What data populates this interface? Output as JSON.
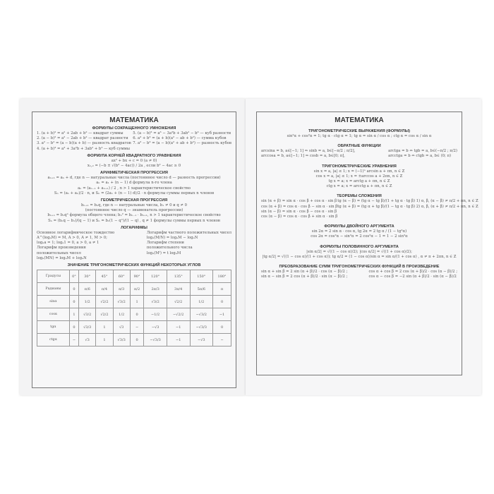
{
  "left": {
    "title": "МАТЕМАТИКА",
    "sections": [
      {
        "heading": "ФОРМУЛЫ СОКРАЩЕННОГО УМНОЖЕНИЯ",
        "col1": [
          "1. (a + b)² = a² + 2ab + b² — квадрат суммы",
          "2. (a − b)² = a² − 2ab + b² — квадрат разности",
          "3. a² − b² = (a − b)(a + b) — разность квадратов",
          "4. (a + b)³ = a³ + 3a²b + 3ab² + b³ — куб суммы"
        ],
        "col2": [
          "5. (a − b)³ = a³ − 3a²b + 3ab² − b³ — куб разности",
          "6. a³ + b³ = (a + b)(a² − ab + b²) — сумма кубов",
          "7. a³ − b³ = (a − b)(a² + ab + b²) — разность кубов"
        ]
      },
      {
        "heading": "ФОРМУЛА КОРНЕЙ КВАДРАТНОГО УРАВНЕНИЯ",
        "lines": [
          "ax² + bx + c = 0 (a ≠ 0)",
          "x₁,₂ = (−b ± √(b² − 4ac)) / 2a , если b² − 4ac ≥ 0"
        ]
      },
      {
        "heading": "АРИФМЕТИЧЕСКАЯ ПРОГРЕССИЯ",
        "lines": [
          "aₙ₊₁ = aₙ + d, где n — натуральные числа (постоянное число d — разность прогрессии)",
          "aₙ = a₁ + (n − 1) d        формула n-го члена",
          "aₙ = (aₙ₋₁ + aₙ₊₁) / 2 , n > 1  характеристическое свойство",
          "Sₙ = (a₁ + aₙ)/2 · n, и Sₙ = (2a₁ + (n − 1) d)/2 · n   формулы суммы первых n членов"
        ]
      },
      {
        "heading": "ГЕОМЕТРИЧЕСКАЯ ПРОГРЕССИЯ",
        "lines": [
          "bₙ₊₁ = bₙq, где n — натуральные числа, b₁ ≠ 0 и q ≠ 0",
          "(постоянное число q — знаменатель прогрессии)",
          "bₙ₊₁ = b₁qⁿ  формула общего члена; bₙ² = bₙ₋₁ · bₙ₊₁, n > 1  характеристическое свойство",
          "Sₙ = (bₙq − b₁)/(q − 1)  и  Sₙ = b₁(1 − qⁿ)/(1 − q) , q ≠ 1    формулы суммы первых n членов"
        ]
      },
      {
        "heading": "ЛОГАРИФМЫ",
        "col1": [
          "Основное логарифмическое тождество",
          "A^(logₐM) = M, A > 0, A ≠ 1, M > 0;",
          "logₐa = 1; logₐ1 = 0, a > 0, a ≠ 1",
          "",
          "Логарифм произведения",
          "положительных чисел",
          "logₐ(MN) = logₐM + logₐN"
        ],
        "col2": [
          "Логарифм частного положительных чисел",
          "logₐ(M/N) = logₐM − logₐN",
          "",
          "",
          "Логарифм степени",
          "положительного числа",
          "logₐ(Mᵗ) = t logₐM"
        ]
      }
    ],
    "table": {
      "heading": "ЗНАЧЕНИЕ ТРИГОНОМЕТРИЧЕСКИХ ФУНКЦИЙ НЕКОТОРЫХ УГЛОВ",
      "rows": [
        [
          "Градусы",
          "0°",
          "30°",
          "45°",
          "60°",
          "90°",
          "120°",
          "135°",
          "150°",
          "180°"
        ],
        [
          "Радианы",
          "0",
          "π/6",
          "π/4",
          "π/3",
          "π/2",
          "2π/3",
          "3π/4",
          "5π/6",
          "π"
        ],
        [
          "sinα",
          "0",
          "1/2",
          "√2/2",
          "√3/2",
          "1",
          "√3/2",
          "√2/2",
          "1/2",
          "0"
        ],
        [
          "cosα",
          "1",
          "√3/2",
          "√2/2",
          "1/2",
          "0",
          "−1/2",
          "−√2/2",
          "−√3/2",
          "−1"
        ],
        [
          "tgα",
          "0",
          "√3/3",
          "1",
          "√3",
          "−",
          "−√3",
          "−1",
          "−√3/3",
          "0"
        ],
        [
          "ctgα",
          "−",
          "√3",
          "1",
          "√3/3",
          "0",
          "−√3/3",
          "−1",
          "−√3",
          "−"
        ]
      ]
    }
  },
  "right": {
    "title": "МАТЕМАТИКА",
    "sections": [
      {
        "heading": "ТРИГОНОМЕТРИЧЕСКИЕ ВЫРАЖЕНИЯ (ФОРМУЛЫ)",
        "lines": [
          "sin²α + cos²α = 1;   tg α · ctg α = 1;   tg α = sin α / cos α ;   ctg α = cos α / sin α"
        ]
      },
      {
        "heading": "ОБРАТНЫЕ ФУНКЦИИ",
        "col1": [
          "arcsina = b, a∈[−1; 1] ⇒ sinb = a, b∈[−π/2 ; π/2],",
          "",
          "arccosa = b, a∈[−1; 1] ⇒ cosb = a, b∈[0; π],"
        ],
        "col2": [
          "arctga = b ⇔ tgb = a, b∈(−π/2 ; π/2)",
          "",
          "arcctga = b ⇔ ctgb = a, b∈ (0; π)"
        ]
      },
      {
        "heading": "ТРИГОНОМЕТРИЧЕСКИЕ УРАВНЕНИЯ",
        "lines": [
          "sin x = a, |a| ≤ 1; x = (−1)ⁿ arcsin a + πn, n ∈ Z",
          "cos x = a, |a| ≤ 1; x = ±arccos a + 2πn, n ∈ Z",
          "tg x = a; x = arctg a + πn, n ∈ Z",
          "ctg x = a; x = arcctg a + πn, n ∈ Z"
        ]
      },
      {
        "heading": "ТЕОРЕМЫ СЛОЖЕНИЯ",
        "col1": [
          "sin (α + β) = sin α · cos β + cos α · sin β",
          "cos (α + β) = cos α · cos β − sin α · sin β",
          "sin (α − β) = sin α · cos β − cos α · sin β",
          "cos (α − β) = cos α · cos β + sin α · sin β"
        ],
        "col2": [
          "tg (α − β) = (tg α − tg β)/(1 + tg α · tg β)  1) α, β, (α − β) ≠ π/2 + πn, n ∈ Z",
          "",
          "tg (α + β) = (tg α + tg β)/(1 − tg α · tg β)  2) α, β, (α + β) ≠ π/2 + πn, n ∈ Z"
        ]
      },
      {
        "heading": "ФОРМУЛЫ ДВОЙНОГО АРГУМЕНТА",
        "lines": [
          "sin 2α = 2 sin α · cos α, tg 2α = 2 tg α / (1 − tg²α)",
          "",
          "cos 2α = cos²α − sin²α = 2 cos²α − 1 = 1 − 2 sin²α"
        ]
      },
      {
        "heading": "ФОРМУЛЫ ПОЛОВИННОГО АРГУМЕНТА",
        "lines": [
          "|sin α/2| = √((1 − cos α)/2);   |cos α/2| = √((1 + cos α)/2);",
          "",
          "|tg α/2| = √((1 − cos α)/(1 + cos α));   tg α/2 = (1 − cos α)/sin α = sin α/(1 + cos α) ,  α ≠ π + 2πn, n ∈ Z"
        ]
      },
      {
        "heading": "ПРЕОБРАЗОВАНИЕ СУММ ТРИГОНОМЕТРИЧЕСКИХ ФУНКЦИЙ В ПРОИЗВЕДЕНИЕ",
        "col1": [
          "sin α + sin β = 2 sin (α + β)/2 · cos (α − β)/2 ;",
          "",
          "sin α − sin β = 2 cos (α + β)/2 · sin (α − β)/2 ;"
        ],
        "col2": [
          "cos α + cos β = 2 cos (α + β)/2 · cos (α − β)/2 ;",
          "",
          "cos α − cos β = −2 sin (α + β)/2 · sin (α − β)/2"
        ]
      }
    ]
  }
}
